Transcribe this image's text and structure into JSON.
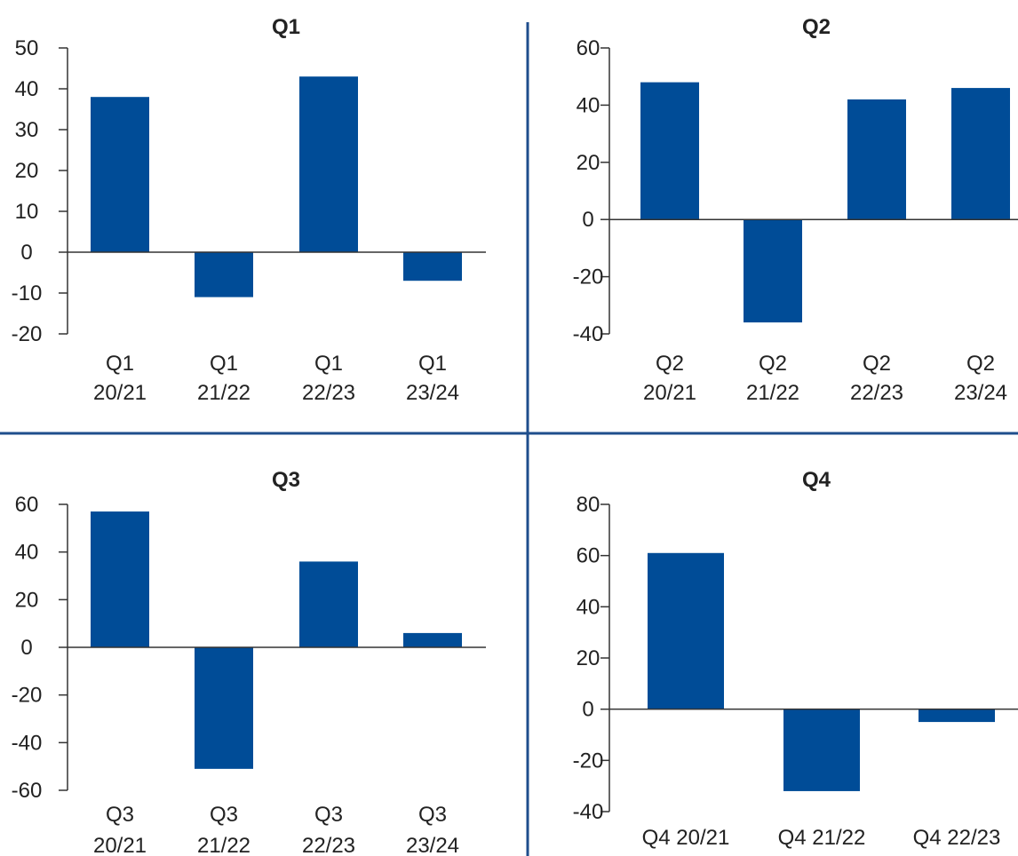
{
  "colors": {
    "bar": "#004C97",
    "divider": "#1F4E8C",
    "axis": "#333333"
  },
  "chart_data": [
    {
      "type": "bar",
      "title": "Q1",
      "xlabel": "",
      "ylabel": "",
      "ylim": [
        -20,
        50
      ],
      "yticks": [
        "50",
        "40",
        "30",
        "20",
        "10",
        "0",
        "-10",
        "-20"
      ],
      "categories": [
        [
          "Q1",
          "20/21"
        ],
        [
          "Q1",
          "21/22"
        ],
        [
          "Q1",
          "22/23"
        ],
        [
          "Q1",
          "23/24"
        ]
      ],
      "values": [
        38,
        -11,
        43,
        -7
      ]
    },
    {
      "type": "bar",
      "title": "Q2",
      "xlabel": "",
      "ylabel": "",
      "ylim": [
        -40,
        60
      ],
      "yticks": [
        "60",
        "40",
        "20",
        "0",
        "-20",
        "-40"
      ],
      "categories": [
        [
          "Q2",
          "20/21"
        ],
        [
          "Q2",
          "21/22"
        ],
        [
          "Q2",
          "22/23"
        ],
        [
          "Q2",
          "23/24"
        ]
      ],
      "values": [
        48,
        -36,
        42,
        46
      ]
    },
    {
      "type": "bar",
      "title": "Q3",
      "xlabel": "",
      "ylabel": "",
      "ylim": [
        -60,
        60
      ],
      "yticks": [
        "60",
        "40",
        "20",
        "0",
        "-20",
        "-40",
        "-60"
      ],
      "categories": [
        [
          "Q3",
          "20/21"
        ],
        [
          "Q3",
          "21/22"
        ],
        [
          "Q3",
          "22/23"
        ],
        [
          "Q3",
          "23/24"
        ]
      ],
      "values": [
        57,
        -51,
        36,
        6
      ]
    },
    {
      "type": "bar",
      "title": "Q4",
      "xlabel": "",
      "ylabel": "",
      "ylim": [
        -40,
        80
      ],
      "yticks": [
        "80",
        "60",
        "40",
        "20",
        "0",
        "-20",
        "-40"
      ],
      "categories": [
        [
          "Q4 20/21"
        ],
        [
          "Q4  21/22"
        ],
        [
          "Q4  22/23"
        ]
      ],
      "values": [
        61,
        -32,
        -5
      ]
    }
  ]
}
